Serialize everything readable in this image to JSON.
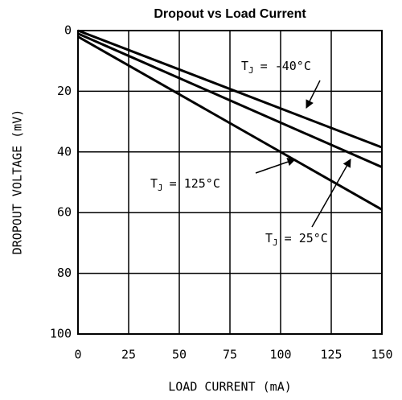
{
  "chart_data": {
    "type": "line",
    "title": "Dropout vs Load Current",
    "xlabel": "LOAD CURRENT (mA)",
    "ylabel": "DROPOUT VOLTAGE (mV)",
    "x": [
      0,
      150
    ],
    "series": [
      {
        "name": "TJ = -40°C",
        "color": "#000000",
        "values": [
          0,
          38.5
        ]
      },
      {
        "name": "TJ = 25°C",
        "color": "#000000",
        "values": [
          1,
          45
        ]
      },
      {
        "name": "TJ = 125°C",
        "color": "#000000",
        "values": [
          2,
          59
        ]
      }
    ],
    "annotations": [
      {
        "text": "T",
        "subscript": "J",
        "rest": "= -40°C"
      },
      {
        "text": "T",
        "subscript": "J",
        "rest": "= 25°C"
      },
      {
        "text": "T",
        "subscript": "J",
        "rest": "= 125°C"
      }
    ],
    "xlim": [
      0,
      150
    ],
    "xticks": [
      0,
      25,
      50,
      75,
      100,
      125,
      150
    ],
    "ylim": [
      0,
      100
    ],
    "yticks": [
      0,
      20,
      40,
      60,
      80,
      100
    ],
    "y_inverted": true,
    "grid": true
  }
}
